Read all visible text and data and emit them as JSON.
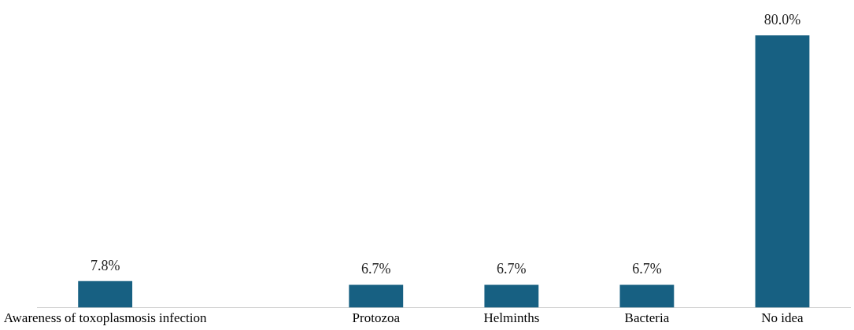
{
  "chart_data": {
    "type": "bar",
    "categories": [
      "Awareness of toxoplasmosis infection",
      null,
      "Protozoa",
      "Helminths",
      "Bacteria",
      "No idea"
    ],
    "values": [
      7.8,
      null,
      6.7,
      6.7,
      6.7,
      80.0
    ],
    "value_labels": [
      "7.8%",
      null,
      "6.7%",
      "6.7%",
      "6.7%",
      "80.0%"
    ],
    "color": "#176082",
    "grid": false,
    "legend": false
  }
}
